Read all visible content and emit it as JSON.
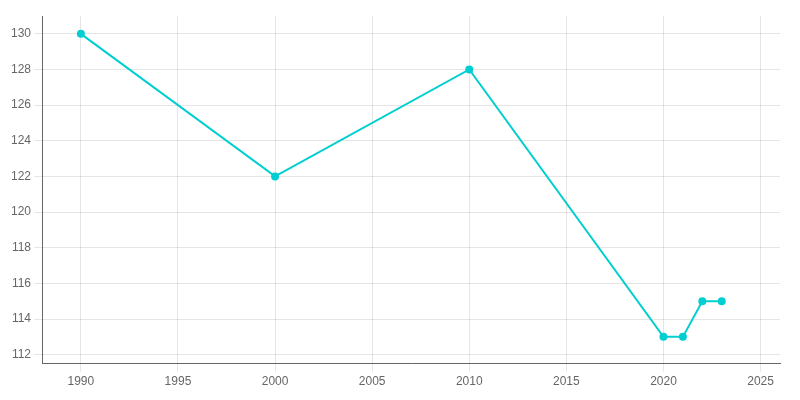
{
  "chart_data": {
    "type": "line",
    "x": [
      1990,
      2000,
      2010,
      2020,
      2021,
      2022,
      2023
    ],
    "values": [
      130,
      122,
      128,
      113,
      113,
      115,
      115
    ],
    "color": "#00CED1",
    "marker": "o",
    "xlim": [
      1988,
      2026
    ],
    "ylim": [
      111.5,
      131
    ],
    "xticks": [
      1990,
      1995,
      2000,
      2005,
      2010,
      2015,
      2020,
      2025
    ],
    "yticks": [
      112,
      114,
      116,
      118,
      120,
      122,
      124,
      126,
      128,
      130
    ],
    "grid": true
  }
}
